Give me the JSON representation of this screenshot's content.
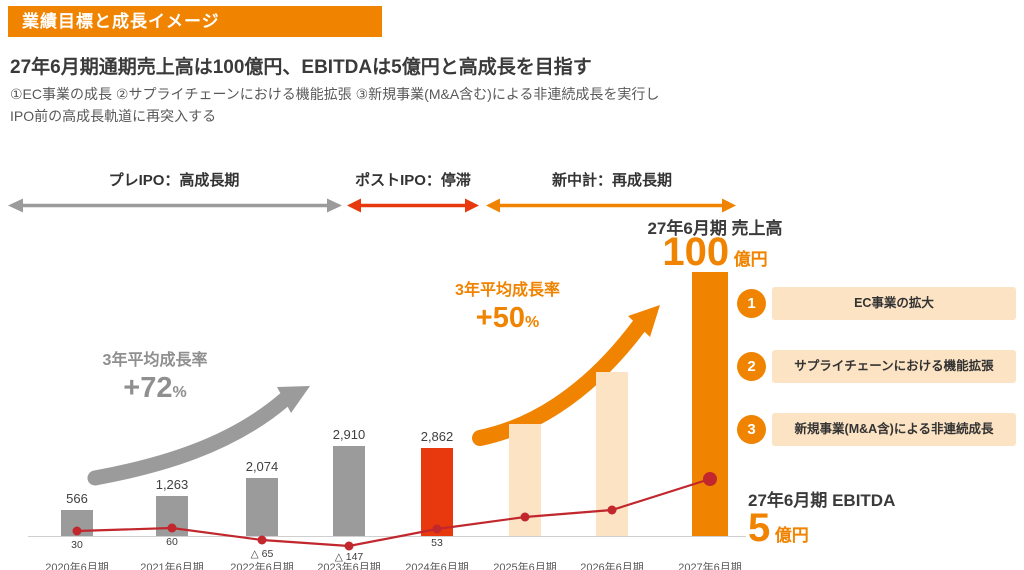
{
  "colors": {
    "orange": "#f08300",
    "light_orange": "#fbe3c3",
    "red": "#e8380d",
    "line_red": "#c1272d",
    "gray": "#9b9b9b"
  },
  "header": {
    "banner": "業績目標と成長イメージ"
  },
  "title": "27年6月期通期売上高は100億円、EBITDAは5億円と高成長を目指す",
  "subtitle_line1": "①EC事業の成長 ②サプライチェーンにおける機能拡張 ③新規事業(M&A含む)による非連続成長を実行し",
  "subtitle_line2": "IPO前の高成長軌道に再突入する",
  "timeline": {
    "phases": [
      {
        "label": "プレIPO：高成長期",
        "color": "#9b9b9b"
      },
      {
        "label": "ポストIPO：停滞",
        "color": "#e8380d"
      },
      {
        "label": "新中計：再成長期",
        "color": "#f08300"
      }
    ]
  },
  "annotations": {
    "gray_growth": {
      "label": "3年平均成長率",
      "value": "+72",
      "unit": "%"
    },
    "orange_growth": {
      "label": "3年平均成長率",
      "value": "+50",
      "unit": "%"
    }
  },
  "targets": {
    "revenue": {
      "period_label": "27年6月期 売上高",
      "value": "100",
      "unit": "億円"
    },
    "ebitda": {
      "period_label": "27年6月期 EBITDA",
      "value": "5",
      "unit": "億円"
    }
  },
  "strategies": [
    {
      "number": "1",
      "label": "EC事業の拡大"
    },
    {
      "number": "2",
      "label": "サプライチェーンにおける機能拡張"
    },
    {
      "number": "3",
      "label": "新規事業(M&A含)による非連続成長"
    }
  ],
  "chart_data": {
    "type": "bar+line",
    "categories": [
      "2020年6月期",
      "2021年6月期",
      "2022年6月期",
      "2023年6月期",
      "2024年6月期",
      "2025年6月期",
      "2026年6月期",
      "2027年6月期"
    ],
    "series": [
      {
        "name": "売上高",
        "type": "bar",
        "values": [
          566,
          1263,
          2074,
          2910,
          2862,
          null,
          null,
          10000
        ],
        "value_labels": [
          "566",
          "1,263",
          "2,074",
          "2,910",
          "2,862",
          "",
          "",
          ""
        ],
        "colors": [
          "#9b9b9b",
          "#9b9b9b",
          "#9b9b9b",
          "#9b9b9b",
          "#e8380d",
          "#fbe3c3",
          "#fbe3c3",
          "#f08300"
        ],
        "display_heights": [
          26,
          40,
          58,
          90,
          88,
          112,
          164,
          264
        ]
      },
      {
        "name": "EBITDA",
        "type": "line",
        "values": [
          30,
          60,
          -65,
          -147,
          53,
          null,
          null,
          500
        ],
        "value_labels": [
          "30",
          "60",
          "△ 65",
          "△ 147",
          "53",
          "",
          "",
          ""
        ],
        "color": "#c1272d",
        "display_offsets": [
          5,
          8,
          -4,
          -10,
          7,
          19,
          26,
          57
        ]
      }
    ],
    "legend": false,
    "grid": false
  }
}
